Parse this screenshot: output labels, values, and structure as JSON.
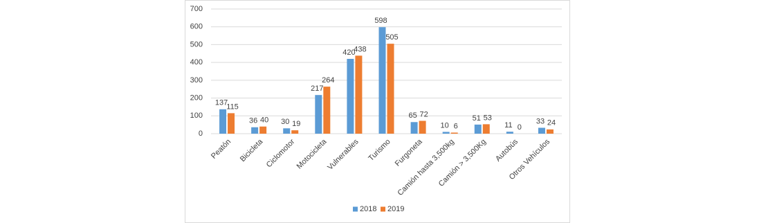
{
  "chart_data": {
    "type": "bar",
    "categories": [
      "Peatón",
      "Bicicleta",
      "Ciclomotor",
      "Motocicleta",
      "Vulnerables",
      "Turismo",
      "Furgoneta",
      "Camión hasta 3,500kg",
      "Camión > 3,500Kg",
      "Autobús",
      "Otros Vehículos"
    ],
    "series": [
      {
        "name": "2018",
        "color": "#5b9bd5",
        "values": [
          137,
          36,
          30,
          217,
          420,
          598,
          65,
          10,
          51,
          11,
          33
        ]
      },
      {
        "name": "2019",
        "color": "#ed7d31",
        "values": [
          115,
          40,
          19,
          264,
          438,
          505,
          72,
          6,
          53,
          0,
          24
        ]
      }
    ],
    "ylim": [
      0,
      700
    ],
    "yticks": [
      0,
      100,
      200,
      300,
      400,
      500,
      600,
      700
    ],
    "grid": true,
    "legend": "bottom"
  }
}
